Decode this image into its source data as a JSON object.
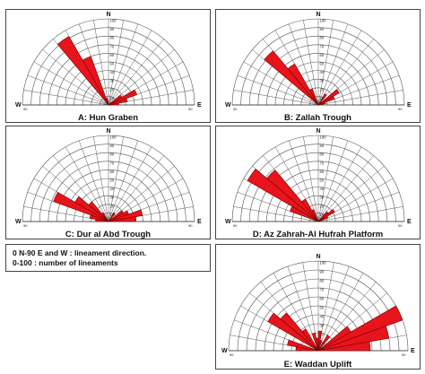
{
  "legend": {
    "line1": "0 N-90 E and W : lineament direction.",
    "line2": "0-100 : number of lineaments"
  },
  "chart_data": [
    {
      "type": "rose",
      "panel": "A",
      "title": "A: Hun Graben",
      "max": 100,
      "rings": [
        10,
        20,
        30,
        40,
        50,
        60,
        70,
        80,
        90,
        100
      ],
      "ring_labels": [
        "100",
        "90",
        "80",
        "70",
        "60",
        "50",
        "40",
        "30",
        "20",
        "10"
      ],
      "direction_labels": {
        "n": "N",
        "e": "E",
        "w": "W"
      },
      "bin_width_deg": 10,
      "sectors": [
        {
          "from": -40,
          "to": -30,
          "value": 92
        },
        {
          "from": -30,
          "to": -20,
          "value": 60
        },
        {
          "from": -20,
          "to": -10,
          "value": 8
        },
        {
          "from": 50,
          "to": 60,
          "value": 18
        },
        {
          "from": 60,
          "to": 70,
          "value": 35
        },
        {
          "from": 70,
          "to": 80,
          "value": 22
        },
        {
          "from": 80,
          "to": 90,
          "value": 12
        }
      ]
    },
    {
      "type": "rose",
      "panel": "B",
      "title": "B: Zallah Trough",
      "max": 100,
      "rings": [
        10,
        20,
        30,
        40,
        50,
        60,
        70,
        80,
        90,
        100
      ],
      "ring_labels": [
        "100",
        "90",
        "80",
        "70",
        "60",
        "50",
        "40",
        "30",
        "20",
        "10"
      ],
      "direction_labels": {
        "n": "N",
        "e": "E",
        "w": "W"
      },
      "bin_width_deg": 10,
      "sectors": [
        {
          "from": -50,
          "to": -40,
          "value": 82
        },
        {
          "from": -40,
          "to": -30,
          "value": 55
        },
        {
          "from": -30,
          "to": -20,
          "value": 20
        },
        {
          "from": 30,
          "to": 40,
          "value": 15
        },
        {
          "from": 50,
          "to": 60,
          "value": 28
        },
        {
          "from": 60,
          "to": 70,
          "value": 20
        },
        {
          "from": 70,
          "to": 80,
          "value": 8
        }
      ]
    },
    {
      "type": "rose",
      "panel": "C",
      "title": "C: Dur al Abd Trough",
      "max": 100,
      "rings": [
        10,
        20,
        30,
        40,
        50,
        60,
        70,
        80,
        90,
        100
      ],
      "ring_labels": [
        "100",
        "90",
        "80",
        "70",
        "60",
        "50",
        "40",
        "30",
        "20",
        "10"
      ],
      "direction_labels": {
        "n": "N",
        "e": "E",
        "w": "W"
      },
      "bin_width_deg": 10,
      "sectors": [
        {
          "from": -70,
          "to": -60,
          "value": 68
        },
        {
          "from": -60,
          "to": -50,
          "value": 45
        },
        {
          "from": -50,
          "to": -40,
          "value": 30
        },
        {
          "from": -80,
          "to": -70,
          "value": 22
        },
        {
          "from": -90,
          "to": -80,
          "value": 15
        },
        {
          "from": -40,
          "to": -30,
          "value": 12
        },
        {
          "from": 30,
          "to": 40,
          "value": 12
        },
        {
          "from": 50,
          "to": 60,
          "value": 20
        },
        {
          "from": 60,
          "to": 70,
          "value": 25
        },
        {
          "from": 70,
          "to": 80,
          "value": 40
        },
        {
          "from": 80,
          "to": 90,
          "value": 32
        }
      ]
    },
    {
      "type": "rose",
      "panel": "D",
      "title": "D: Az Zahrah-Al Hufrah Platform",
      "max": 100,
      "rings": [
        10,
        20,
        30,
        40,
        50,
        60,
        70,
        80,
        90,
        100
      ],
      "ring_labels": [
        "100",
        "90",
        "80",
        "70",
        "60",
        "50",
        "40",
        "30",
        "20",
        "10"
      ],
      "direction_labels": {
        "n": "N",
        "e": "E",
        "w": "W"
      },
      "bin_width_deg": 10,
      "sectors": [
        {
          "from": -60,
          "to": -50,
          "value": 95
        },
        {
          "from": -50,
          "to": -40,
          "value": 78
        },
        {
          "from": -70,
          "to": -60,
          "value": 35
        },
        {
          "from": -40,
          "to": -30,
          "value": 30
        },
        {
          "from": -30,
          "to": -20,
          "value": 15
        },
        {
          "from": 40,
          "to": 50,
          "value": 15
        },
        {
          "from": 50,
          "to": 60,
          "value": 22
        },
        {
          "from": 60,
          "to": 70,
          "value": 12
        }
      ]
    },
    {
      "type": "rose",
      "panel": "E",
      "title": "E: Waddan Uplift",
      "max": 100,
      "rings": [
        10,
        20,
        30,
        40,
        50,
        60,
        70,
        80,
        90,
        100
      ],
      "ring_labels": [
        "100",
        "90",
        "80",
        "70",
        "60",
        "50",
        "40",
        "30",
        "20",
        "10"
      ],
      "direction_labels": {
        "n": "N",
        "e": "E",
        "w": "W"
      },
      "bin_width_deg": 10,
      "sectors": [
        {
          "from": -90,
          "to": -80,
          "value": 25
        },
        {
          "from": -80,
          "to": -70,
          "value": 35
        },
        {
          "from": -60,
          "to": -50,
          "value": 65
        },
        {
          "from": -50,
          "to": -40,
          "value": 55
        },
        {
          "from": -40,
          "to": -30,
          "value": 28
        },
        {
          "from": -20,
          "to": -10,
          "value": 20
        },
        {
          "from": -10,
          "to": 0,
          "value": 14
        },
        {
          "from": 0,
          "to": 10,
          "value": 22
        },
        {
          "from": 10,
          "to": 20,
          "value": 12
        },
        {
          "from": 30,
          "to": 40,
          "value": 20
        },
        {
          "from": 50,
          "to": 60,
          "value": 42
        },
        {
          "from": 60,
          "to": 70,
          "value": 100
        },
        {
          "from": 70,
          "to": 80,
          "value": 80
        },
        {
          "from": 80,
          "to": 90,
          "value": 58
        }
      ]
    }
  ]
}
